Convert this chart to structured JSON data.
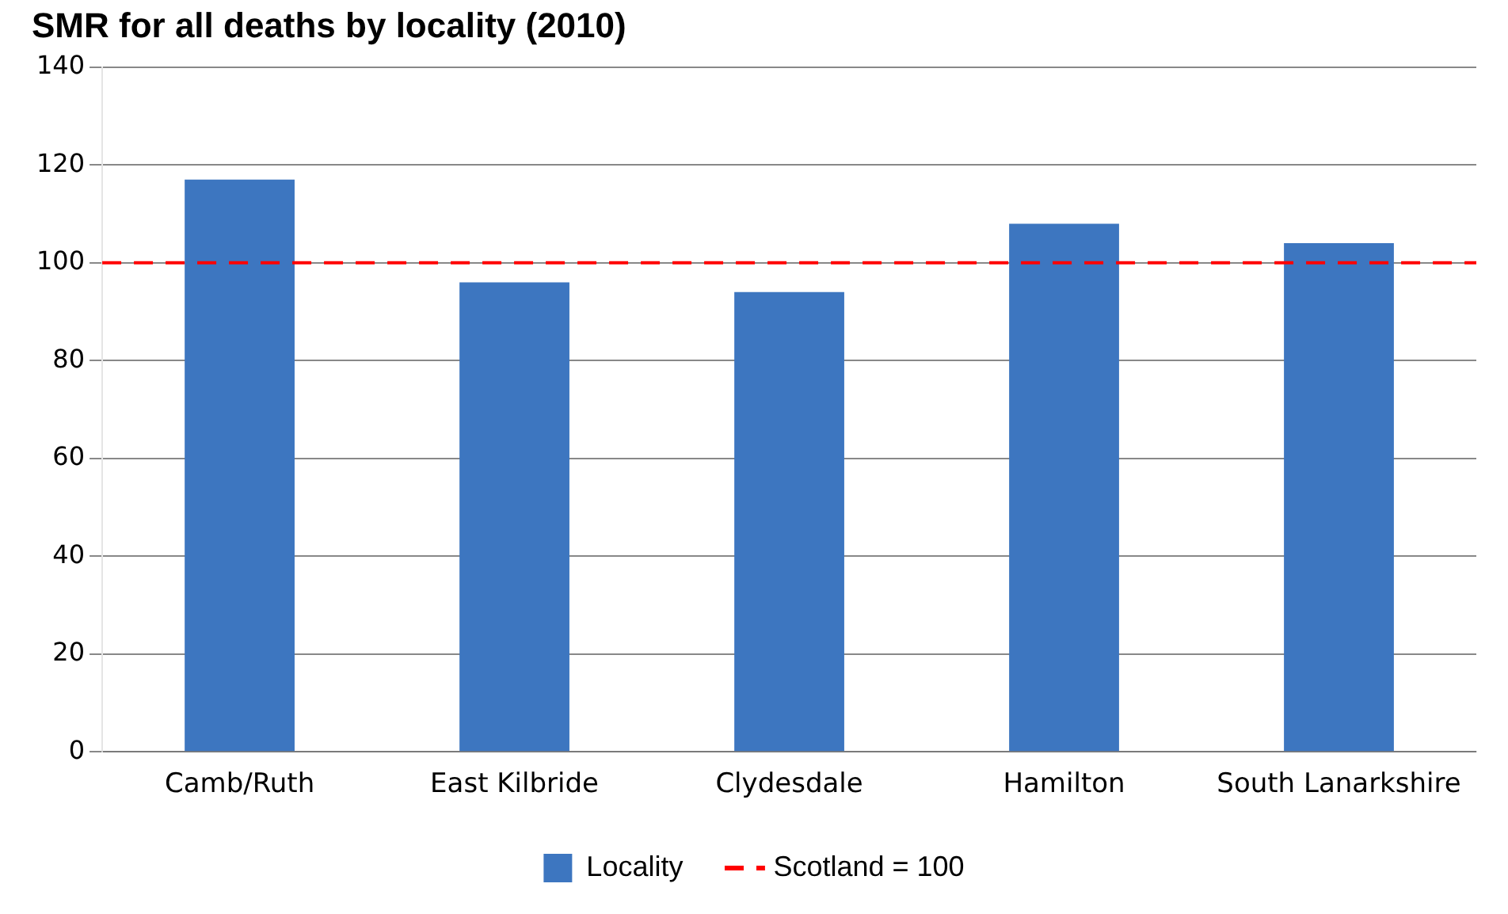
{
  "chart_data": {
    "type": "bar",
    "title": "SMR for all deaths by locality (2010)",
    "categories": [
      "Camb/Ruth",
      "East Kilbride",
      "Clydesdale",
      "Hamilton",
      "South Lanarkshire"
    ],
    "series": [
      {
        "name": "Locality",
        "color": "#3d76c0",
        "values": [
          117,
          96,
          94,
          108,
          104
        ]
      }
    ],
    "ylim": [
      0,
      140
    ],
    "yticks": [
      0,
      20,
      40,
      60,
      80,
      100,
      120,
      140
    ],
    "grid": "y",
    "legend": "bottom",
    "ref_lines": [
      {
        "axis": "y",
        "value": 100,
        "label": "Scotland = 100",
        "color": "#ff0000",
        "line_style": "dashed"
      }
    ]
  }
}
